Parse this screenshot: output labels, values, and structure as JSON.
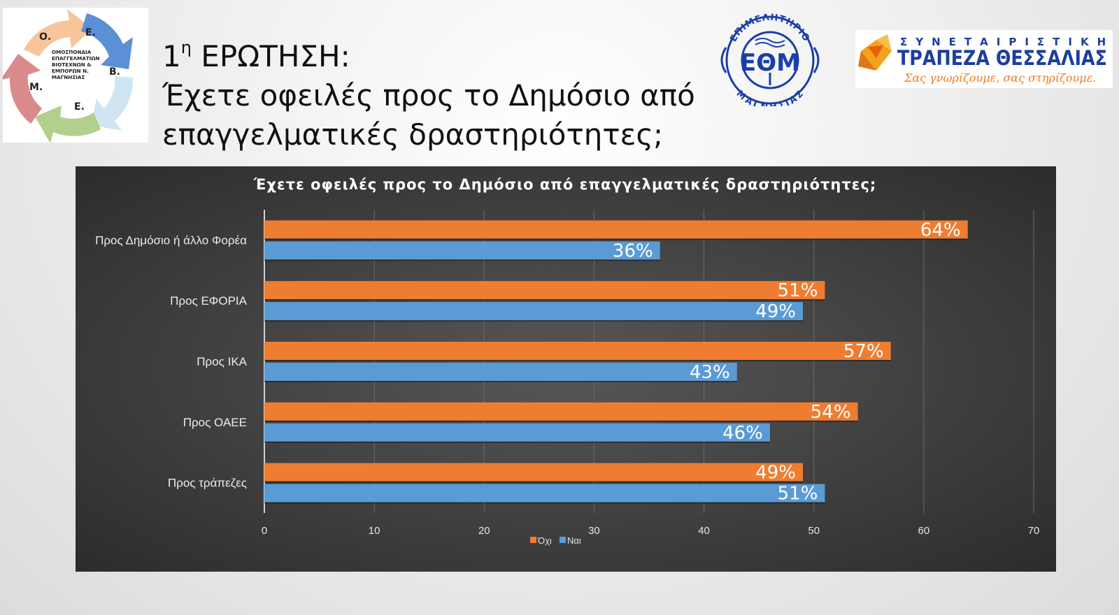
{
  "slide": {
    "title_number": "1",
    "title_superscript": "η",
    "title_word": " ΕΡΩΤΗΣΗ:",
    "question_line1": "Έχετε οφειλές προς το Δημόσιο από",
    "question_line2": "επαγγελματικές δραστηριότητες;"
  },
  "logos": {
    "left": {
      "text_lines": [
        "ΟΜΟΣΠΟΝΔΙΑ",
        "ΕΠΑΓΓΕΛΜΑΤΙΩΝ",
        "ΒΙΟΤΕΧΝΩΝ &",
        "ΕΜΠΟΡΩΝ Ν.",
        "ΜΑΓΝΗΣΙΑΣ"
      ],
      "letters": [
        "Ο.",
        "Ε.",
        "Β.",
        "Ε.",
        "Μ."
      ]
    },
    "eom": {
      "top_text": "ΕΠΙΜΕΛΗΤΗΡΙΟ",
      "mono": "ΕΘΜ",
      "bottom_text": "ΜΑΓΝΗΣΙΑΣ",
      "color": "#1b3fa8"
    },
    "bank": {
      "top_text": "ΣΥΝΕΤΑΙΡΙΣΤΙΚΗ",
      "name": "ΤΡΑΠΕΖΑ ΘΕΣΣΑΛΙΑΣ",
      "slogan": "Σας γνωρίζουμε, σας στηρίζουμε.",
      "blue": "#1d3e9e",
      "orange": "#f07a1c"
    }
  },
  "chart_data": {
    "type": "bar",
    "orientation": "horizontal",
    "title": "Έχετε οφειλές προς το Δημόσιο από επαγγελματικές δραστηριότητες;",
    "categories": [
      "Προς Δημόσιο ή άλλο Φορέα",
      "Προς ΕΦΟΡΙΑ",
      "Προς ΙΚΑ",
      "Προς ΟΑΕΕ",
      "Προς τράπεζες"
    ],
    "series": [
      {
        "name": "Όχι",
        "color": "#ef7d31",
        "values": [
          64,
          51,
          57,
          54,
          49
        ],
        "labels": [
          "64%",
          "51%",
          "57%",
          "54%",
          "49%"
        ]
      },
      {
        "name": "Ναι",
        "color": "#5b9bd5",
        "values": [
          36,
          49,
          43,
          46,
          51
        ],
        "labels": [
          "36%",
          "49%",
          "43%",
          "46%",
          "51%"
        ]
      }
    ],
    "xlim": [
      0,
      70
    ],
    "xticks": [
      "0",
      "10",
      "20",
      "30",
      "40",
      "50",
      "60",
      "70"
    ],
    "grid": true,
    "legend_position": "bottom"
  }
}
